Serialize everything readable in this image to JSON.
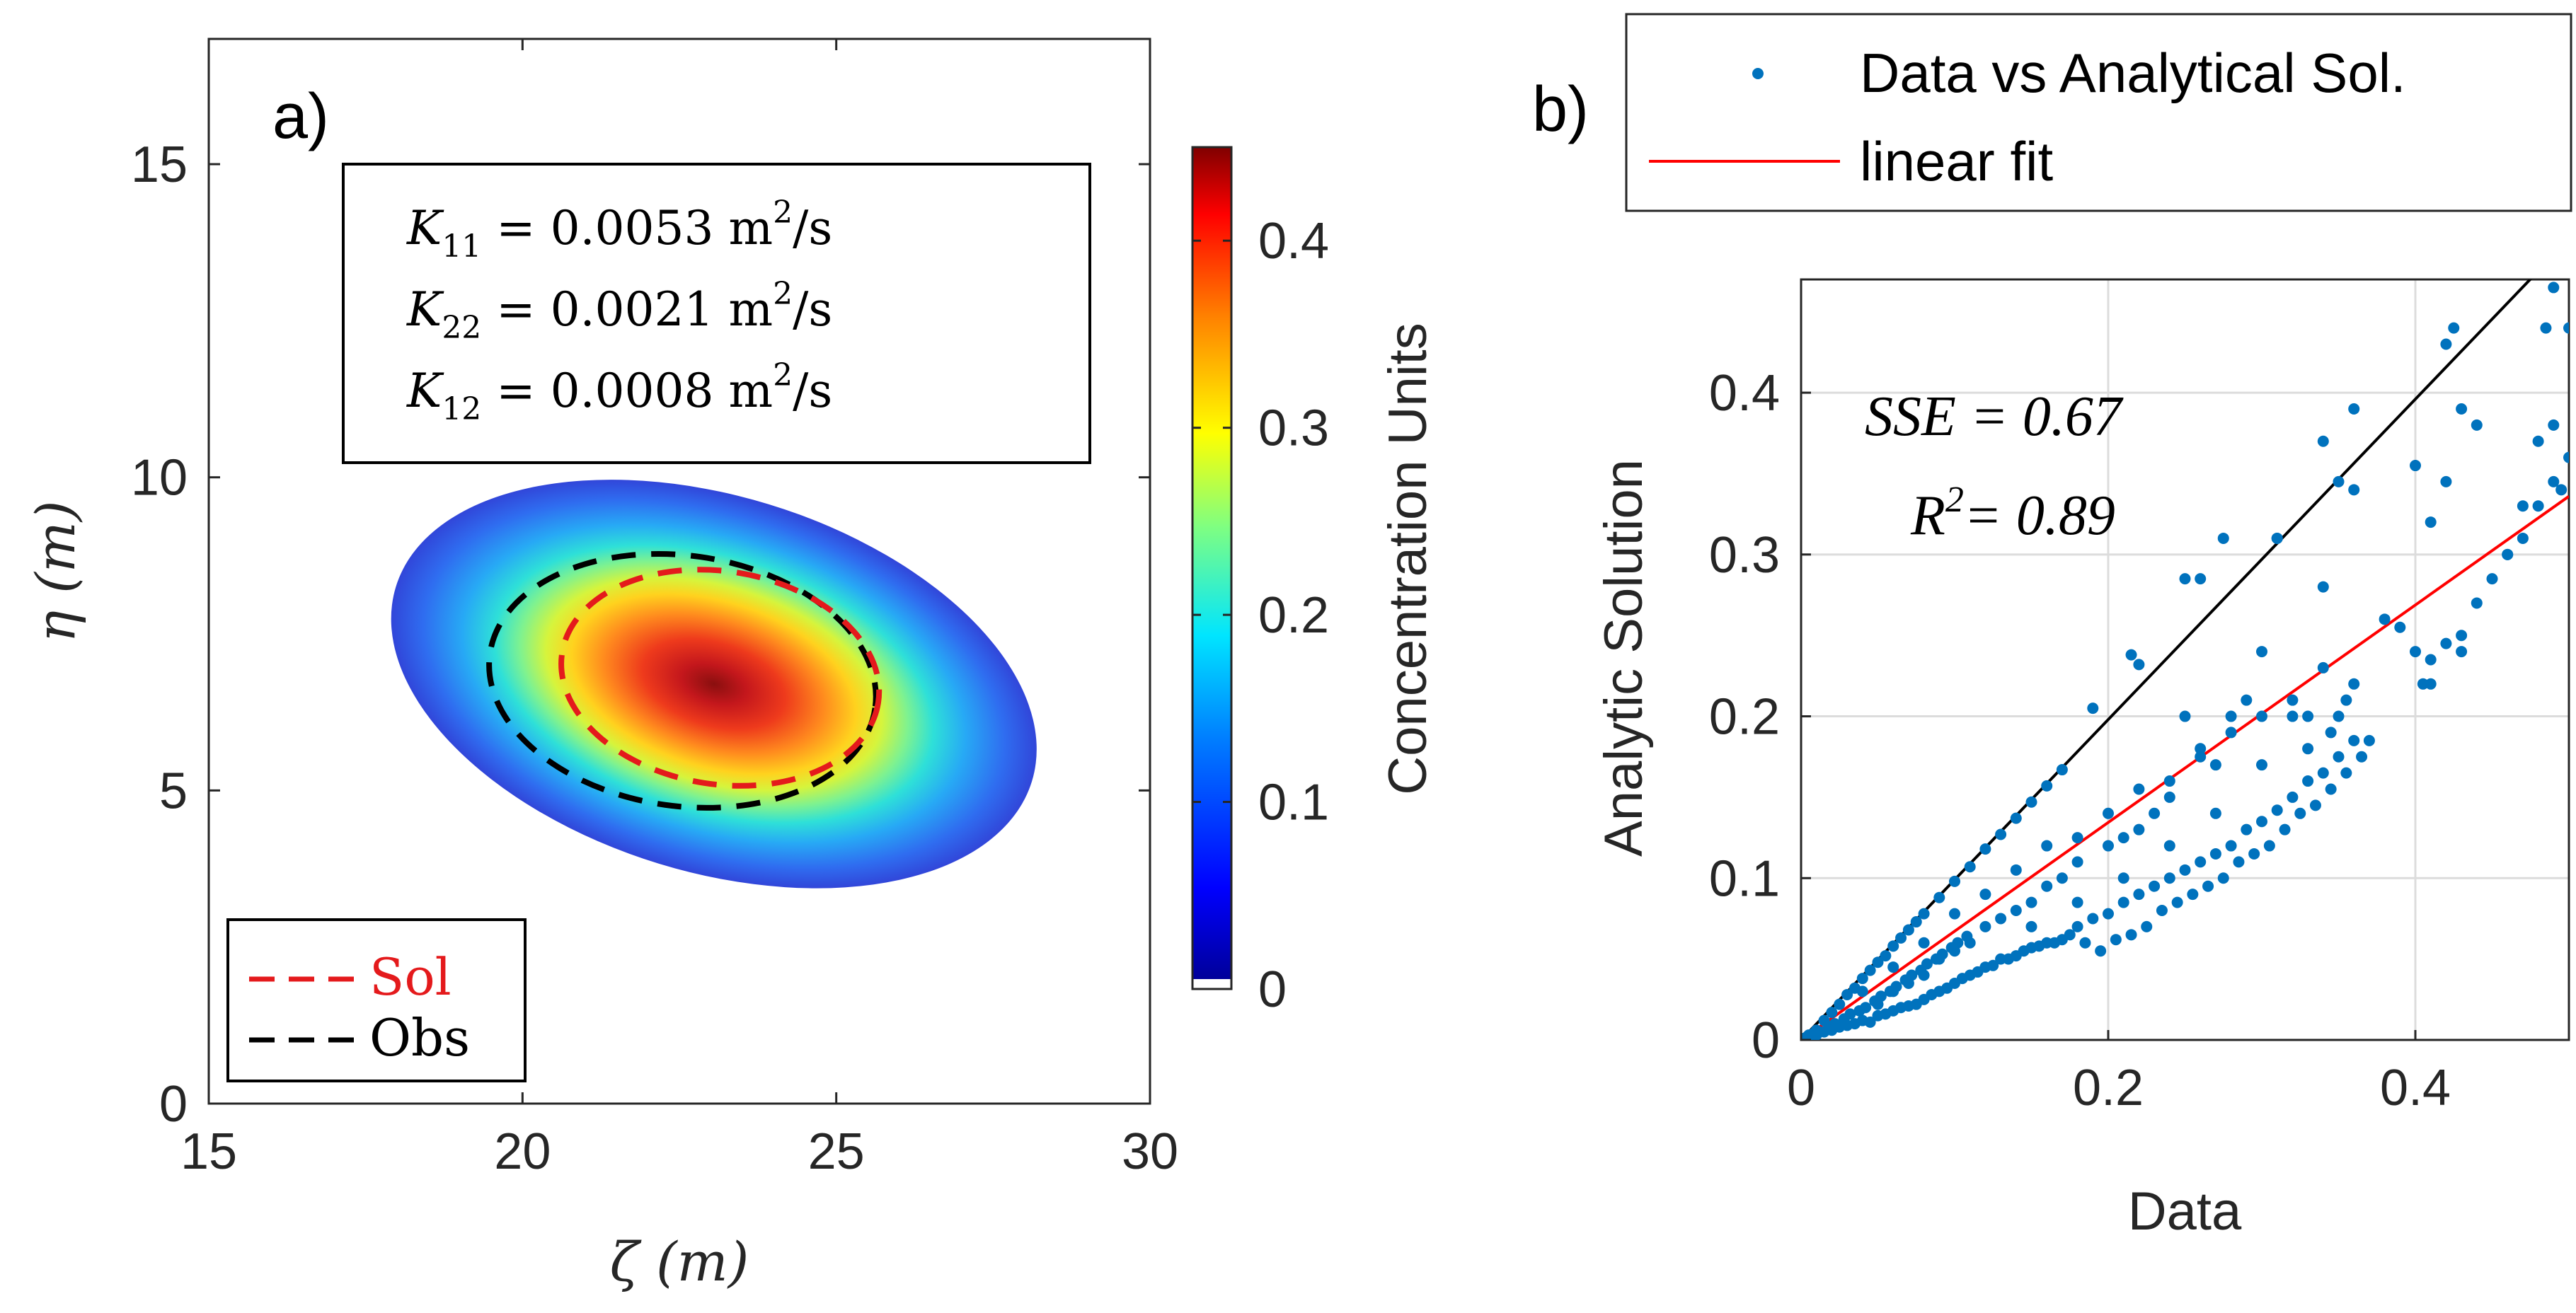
{
  "chart_data": [
    {
      "panel": "a)",
      "type": "heatmap",
      "title": "",
      "xlabel": "ζ (m)",
      "ylabel": "η (m)",
      "xlim": [
        15,
        30
      ],
      "ylim": [
        0,
        17
      ],
      "xticks": [
        15,
        20,
        25,
        30
      ],
      "yticks": [
        0,
        5,
        10,
        15
      ],
      "grid": false,
      "field": {
        "description_units": "Concentration Units",
        "peak_value": 0.43,
        "peak_center": [
          23.1,
          6.7
        ],
        "extent_ellipse": {
          "center": [
            23.05,
            6.7
          ],
          "semi_axis_major": 5.3,
          "semi_axis_minor": 3.0,
          "angle_deg": -17
        }
      },
      "contours": [
        {
          "name": "Sol",
          "color": "#e41a1c",
          "style": "dashed",
          "center": [
            23.15,
            6.8
          ],
          "semi_axis_major": 2.55,
          "semi_axis_minor": 1.7,
          "angle_deg": -9
        },
        {
          "name": "Obs",
          "color": "#000000",
          "style": "dashed",
          "center": [
            22.55,
            6.75
          ],
          "semi_axis_major": 3.1,
          "semi_axis_minor": 2.0,
          "angle_deg": -8
        }
      ],
      "annotation_lines": [
        {
          "symbol": "K",
          "sub": "11",
          "rest": " = 0.0053 m",
          "sup": "2",
          "tail": "/s"
        },
        {
          "symbol": "K",
          "sub": "22",
          "rest": " = 0.0021 m",
          "sup": "2",
          "tail": "/s"
        },
        {
          "symbol": "K",
          "sub": "12",
          "rest": " = 0.0008 m",
          "sup": "2",
          "tail": "/s"
        }
      ],
      "legend": {
        "placement": "bottom-left",
        "entries": [
          "Sol",
          "Obs"
        ]
      },
      "colorbar": {
        "label": "Concentration Units",
        "range": [
          0,
          0.45
        ],
        "ticks": [
          0,
          0.1,
          0.2,
          0.3,
          0.4
        ],
        "colormap": "jet"
      }
    },
    {
      "panel": "b)",
      "type": "scatter",
      "title": "",
      "xlabel": "Data",
      "ylabel": "Analytic Solution",
      "xlim": [
        0,
        0.5
      ],
      "ylim": [
        0,
        0.47
      ],
      "xticks": [
        0,
        0.2,
        0.4
      ],
      "yticks": [
        0,
        0.1,
        0.2,
        0.3,
        0.4
      ],
      "grid": true,
      "legend": {
        "placement": "top-outside",
        "entries": [
          "Data vs Analytical Sol.",
          "linear fit"
        ]
      },
      "annotations": {
        "sse": "SSE = 0.67",
        "r2_prefix": "R",
        "r2_sup": "2",
        "r2_rest": "= 0.89"
      },
      "series": [
        {
          "name": "Data vs Analytical Sol.",
          "color": "#0072bd",
          "points": [
            [
              0.005,
              0.003
            ],
            [
              0.01,
              0.006
            ],
            [
              0.015,
              0.012
            ],
            [
              0.02,
              0.017
            ],
            [
              0.025,
              0.022
            ],
            [
              0.03,
              0.028
            ],
            [
              0.035,
              0.032
            ],
            [
              0.04,
              0.038
            ],
            [
              0.045,
              0.043
            ],
            [
              0.05,
              0.048
            ],
            [
              0.055,
              0.052
            ],
            [
              0.06,
              0.058
            ],
            [
              0.065,
              0.063
            ],
            [
              0.07,
              0.068
            ],
            [
              0.075,
              0.073
            ],
            [
              0.08,
              0.078
            ],
            [
              0.09,
              0.088
            ],
            [
              0.1,
              0.098
            ],
            [
              0.11,
              0.107
            ],
            [
              0.12,
              0.118
            ],
            [
              0.13,
              0.127
            ],
            [
              0.14,
              0.137
            ],
            [
              0.15,
              0.147
            ],
            [
              0.16,
              0.157
            ],
            [
              0.17,
              0.167
            ],
            [
              0.19,
              0.205
            ],
            [
              0.215,
              0.238
            ],
            [
              0.22,
              0.232
            ],
            [
              0.25,
              0.285
            ],
            [
              0.26,
              0.285
            ],
            [
              0.275,
              0.31
            ],
            [
              0.31,
              0.31
            ],
            [
              0.34,
              0.37
            ],
            [
              0.35,
              0.345
            ],
            [
              0.36,
              0.39
            ],
            [
              0.425,
              0.44
            ],
            [
              0.49,
              0.465
            ],
            [
              0.485,
              0.44
            ],
            [
              0.01,
              0.003
            ],
            [
              0.02,
              0.006
            ],
            [
              0.03,
              0.009
            ],
            [
              0.04,
              0.012
            ],
            [
              0.05,
              0.015
            ],
            [
              0.06,
              0.018
            ],
            [
              0.07,
              0.021
            ],
            [
              0.08,
              0.025
            ],
            [
              0.09,
              0.03
            ],
            [
              0.1,
              0.035
            ],
            [
              0.11,
              0.04
            ],
            [
              0.12,
              0.045
            ],
            [
              0.13,
              0.05
            ],
            [
              0.14,
              0.052
            ],
            [
              0.15,
              0.057
            ],
            [
              0.16,
              0.06
            ],
            [
              0.17,
              0.062
            ],
            [
              0.18,
              0.07
            ],
            [
              0.19,
              0.075
            ],
            [
              0.2,
              0.078
            ],
            [
              0.21,
              0.085
            ],
            [
              0.22,
              0.09
            ],
            [
              0.23,
              0.095
            ],
            [
              0.24,
              0.1
            ],
            [
              0.25,
              0.105
            ],
            [
              0.26,
              0.11
            ],
            [
              0.27,
              0.115
            ],
            [
              0.28,
              0.12
            ],
            [
              0.29,
              0.13
            ],
            [
              0.3,
              0.135
            ],
            [
              0.31,
              0.142
            ],
            [
              0.32,
              0.15
            ],
            [
              0.33,
              0.16
            ],
            [
              0.34,
              0.165
            ],
            [
              0.35,
              0.175
            ],
            [
              0.36,
              0.185
            ],
            [
              0.37,
              0.185
            ],
            [
              0.38,
              0.26
            ],
            [
              0.39,
              0.255
            ],
            [
              0.4,
              0.24
            ],
            [
              0.405,
              0.22
            ],
            [
              0.41,
              0.235
            ],
            [
              0.42,
              0.245
            ],
            [
              0.43,
              0.25
            ],
            [
              0.44,
              0.27
            ],
            [
              0.45,
              0.285
            ],
            [
              0.46,
              0.3
            ],
            [
              0.47,
              0.31
            ],
            [
              0.48,
              0.33
            ],
            [
              0.49,
              0.345
            ],
            [
              0.495,
              0.34
            ],
            [
              0.5,
              0.36
            ],
            [
              0.015,
              0.005
            ],
            [
              0.025,
              0.008
            ],
            [
              0.035,
              0.01
            ],
            [
              0.045,
              0.011
            ],
            [
              0.055,
              0.016
            ],
            [
              0.065,
              0.02
            ],
            [
              0.075,
              0.022
            ],
            [
              0.085,
              0.028
            ],
            [
              0.095,
              0.032
            ],
            [
              0.105,
              0.038
            ],
            [
              0.115,
              0.042
            ],
            [
              0.125,
              0.046
            ],
            [
              0.135,
              0.05
            ],
            [
              0.145,
              0.055
            ],
            [
              0.155,
              0.058
            ],
            [
              0.165,
              0.06
            ],
            [
              0.175,
              0.065
            ],
            [
              0.185,
              0.06
            ],
            [
              0.195,
              0.055
            ],
            [
              0.205,
              0.062
            ],
            [
              0.215,
              0.065
            ],
            [
              0.225,
              0.07
            ],
            [
              0.235,
              0.08
            ],
            [
              0.245,
              0.085
            ],
            [
              0.255,
              0.09
            ],
            [
              0.265,
              0.095
            ],
            [
              0.275,
              0.1
            ],
            [
              0.285,
              0.11
            ],
            [
              0.295,
              0.115
            ],
            [
              0.305,
              0.12
            ],
            [
              0.315,
              0.13
            ],
            [
              0.325,
              0.14
            ],
            [
              0.335,
              0.145
            ],
            [
              0.345,
              0.155
            ],
            [
              0.355,
              0.165
            ],
            [
              0.365,
              0.175
            ],
            [
              0.05,
              0.022
            ],
            [
              0.06,
              0.03
            ],
            [
              0.07,
              0.035
            ],
            [
              0.08,
              0.04
            ],
            [
              0.09,
              0.05
            ],
            [
              0.1,
              0.055
            ],
            [
              0.11,
              0.06
            ],
            [
              0.12,
              0.07
            ],
            [
              0.13,
              0.075
            ],
            [
              0.14,
              0.08
            ],
            [
              0.15,
              0.085
            ],
            [
              0.16,
              0.095
            ],
            [
              0.17,
              0.1
            ],
            [
              0.18,
              0.11
            ],
            [
              0.2,
              0.12
            ],
            [
              0.21,
              0.125
            ],
            [
              0.22,
              0.13
            ],
            [
              0.23,
              0.14
            ],
            [
              0.24,
              0.15
            ],
            [
              0.25,
              0.2
            ],
            [
              0.26,
              0.18
            ],
            [
              0.27,
              0.17
            ],
            [
              0.28,
              0.19
            ],
            [
              0.29,
              0.21
            ],
            [
              0.3,
              0.24
            ],
            [
              0.31,
              0.31
            ],
            [
              0.32,
              0.2
            ],
            [
              0.33,
              0.18
            ],
            [
              0.34,
              0.28
            ],
            [
              0.345,
              0.19
            ],
            [
              0.35,
              0.2
            ],
            [
              0.355,
              0.21
            ],
            [
              0.36,
              0.34
            ],
            [
              0.4,
              0.355
            ],
            [
              0.41,
              0.32
            ],
            [
              0.42,
              0.345
            ],
            [
              0.44,
              0.38
            ],
            [
              0.46,
              0.3
            ],
            [
              0.47,
              0.33
            ],
            [
              0.48,
              0.37
            ],
            [
              0.49,
              0.38
            ],
            [
              0.5,
              0.44
            ],
            [
              0.43,
              0.39
            ],
            [
              0.42,
              0.43
            ],
            [
              0.43,
              0.24
            ],
            [
              0.41,
              0.22
            ],
            [
              0.002,
              0.001
            ],
            [
              0.004,
              0.002
            ],
            [
              0.006,
              0.003
            ],
            [
              0.008,
              0.004
            ],
            [
              0.012,
              0.005
            ],
            [
              0.018,
              0.008
            ],
            [
              0.022,
              0.01
            ],
            [
              0.028,
              0.013
            ],
            [
              0.032,
              0.016
            ],
            [
              0.038,
              0.018
            ],
            [
              0.042,
              0.02
            ],
            [
              0.048,
              0.024
            ],
            [
              0.052,
              0.027
            ],
            [
              0.058,
              0.03
            ],
            [
              0.062,
              0.033
            ],
            [
              0.068,
              0.037
            ],
            [
              0.072,
              0.04
            ],
            [
              0.078,
              0.043
            ],
            [
              0.082,
              0.047
            ],
            [
              0.088,
              0.05
            ],
            [
              0.092,
              0.053
            ],
            [
              0.098,
              0.057
            ],
            [
              0.102,
              0.06
            ],
            [
              0.108,
              0.064
            ],
            [
              0.04,
              0.03
            ],
            [
              0.06,
              0.045
            ],
            [
              0.08,
              0.06
            ],
            [
              0.1,
              0.078
            ],
            [
              0.12,
              0.09
            ],
            [
              0.14,
              0.105
            ],
            [
              0.16,
              0.12
            ],
            [
              0.18,
              0.125
            ],
            [
              0.2,
              0.14
            ],
            [
              0.22,
              0.155
            ],
            [
              0.24,
              0.16
            ],
            [
              0.26,
              0.175
            ],
            [
              0.28,
              0.2
            ],
            [
              0.3,
              0.2
            ],
            [
              0.32,
              0.21
            ],
            [
              0.34,
              0.23
            ],
            [
              0.36,
              0.22
            ],
            [
              0.33,
              0.2
            ],
            [
              0.3,
              0.17
            ],
            [
              0.27,
              0.14
            ],
            [
              0.24,
              0.12
            ],
            [
              0.21,
              0.1
            ],
            [
              0.18,
              0.085
            ],
            [
              0.15,
              0.07
            ]
          ]
        },
        {
          "name": "linear fit",
          "color": "#ff0000",
          "type": "line",
          "x": [
            0,
            0.5
          ],
          "y": [
            0,
            0.336
          ]
        },
        {
          "name": "1:1 line",
          "color": "#000000",
          "type": "line",
          "x": [
            0,
            0.5
          ],
          "y": [
            0,
            0.495
          ]
        }
      ]
    }
  ]
}
